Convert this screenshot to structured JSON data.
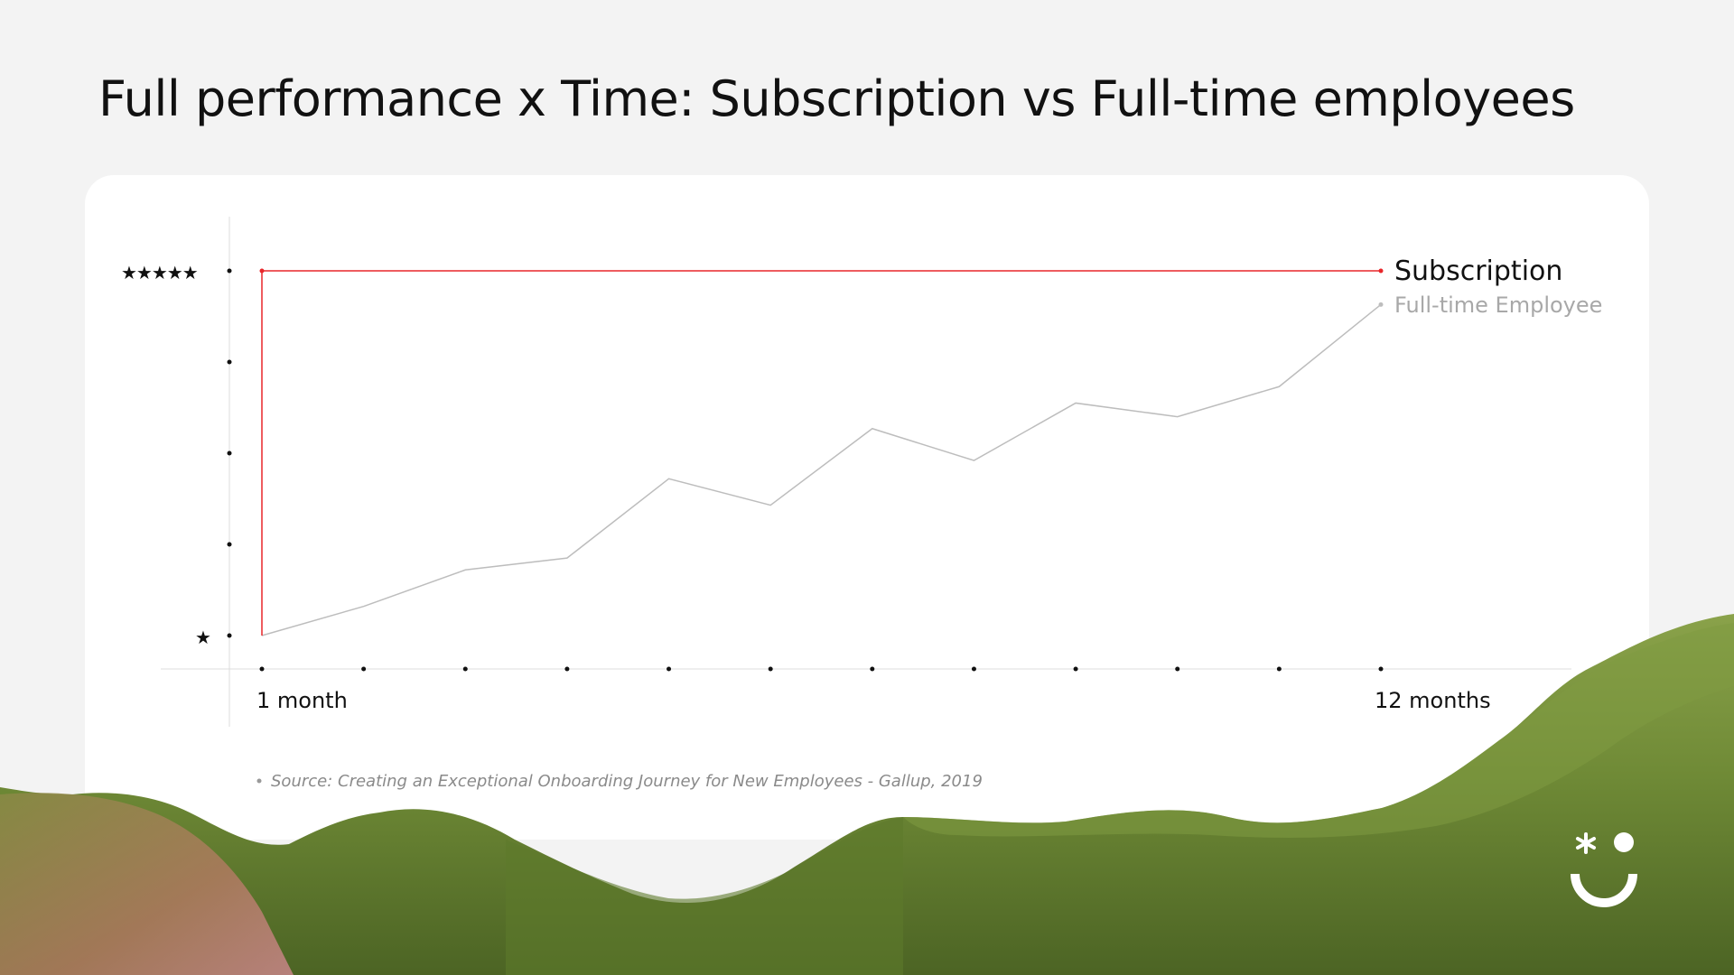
{
  "title": "Full performance x Time: Subscription vs Full-time employees",
  "source": "Source: Creating an Exceptional Onboarding Journey for New Employees - Gallup, 2019",
  "icons": {
    "logo": "smiley-logo-icon",
    "rating_top": "five-stars-icon",
    "rating_bottom": "one-star-icon"
  },
  "colors": {
    "subscription": "#e8262a",
    "full_time": "#bdbdbd",
    "background": "#f3f3f3",
    "card": "#ffffff",
    "grass": "#6f8a36"
  },
  "chart_data": {
    "type": "line",
    "x": [
      1,
      2,
      3,
      4,
      5,
      6,
      7,
      8,
      9,
      10,
      11,
      12
    ],
    "tick_labels": {
      "1": "1 month",
      "12": "12 months"
    },
    "y_rating_labels": {
      "1": "★",
      "5": "★★★★★"
    },
    "ylim": [
      1,
      5
    ],
    "xlim": [
      1,
      12
    ],
    "grid": false,
    "legend_placement": "right end of lines",
    "series": [
      {
        "name": "Subscription",
        "x": [
          1,
          1,
          12
        ],
        "y": [
          1,
          5,
          5
        ]
      },
      {
        "name": "Full-time Employee",
        "x": [
          1,
          2,
          3,
          4,
          5,
          6,
          7,
          8,
          9,
          10,
          11,
          12
        ],
        "y": [
          1,
          1.32,
          1.72,
          1.85,
          2.72,
          2.43,
          3.27,
          2.92,
          3.55,
          3.4,
          3.73,
          4.63
        ]
      }
    ]
  }
}
